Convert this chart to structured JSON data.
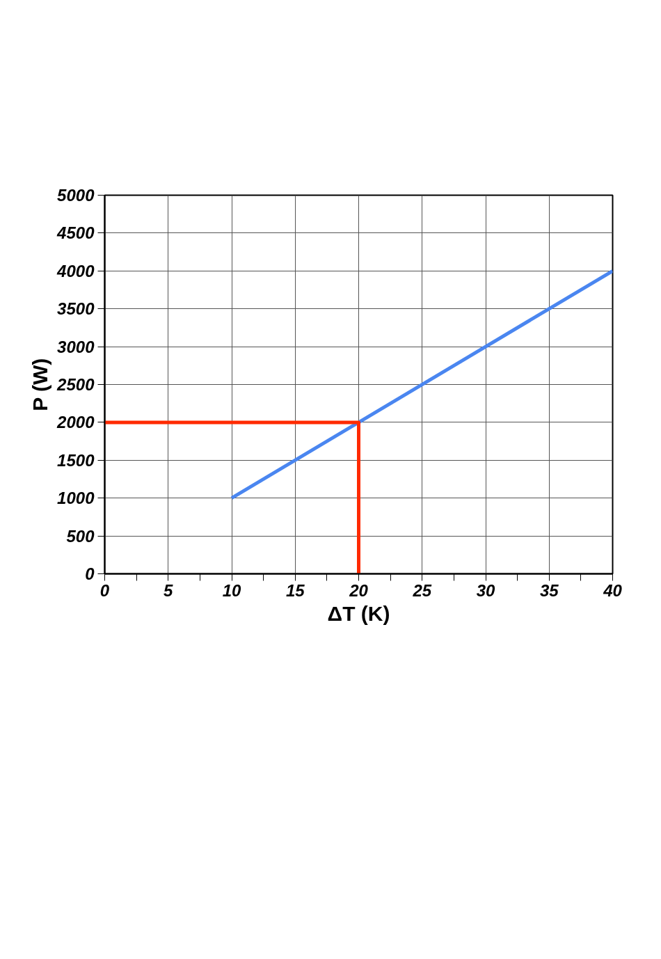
{
  "chart_data": {
    "type": "line",
    "xlabel": "ΔT (K)",
    "ylabel": "P (W)",
    "series": [
      {
        "color": "#4a86f0",
        "x": [
          10,
          40
        ],
        "values": [
          1000,
          4000
        ]
      },
      {
        "color": "#ff2a00",
        "x": [
          0,
          20,
          20
        ],
        "values": [
          2000,
          2000,
          0
        ]
      }
    ],
    "xlim": [
      0,
      40
    ],
    "ylim": [
      0,
      5000
    ],
    "xticks": [
      0,
      {
        "value": 2.5,
        "label": null
      },
      5,
      {
        "value": 7.5,
        "label": null
      },
      10,
      {
        "value": 12.5,
        "label": null
      },
      15,
      {
        "value": 17.5,
        "label": null
      },
      20,
      {
        "value": 22.5,
        "label": null
      },
      25,
      {
        "value": 27.5,
        "label": null
      },
      30,
      {
        "value": 32.5,
        "label": null
      },
      35,
      {
        "value": 37.5,
        "label": null
      },
      40
    ],
    "yticks": [
      0,
      500,
      1000,
      1500,
      2000,
      2500,
      3000,
      3500,
      4000,
      4500,
      5000
    ],
    "grid": true,
    "marker": "none",
    "line_style": "solid"
  }
}
